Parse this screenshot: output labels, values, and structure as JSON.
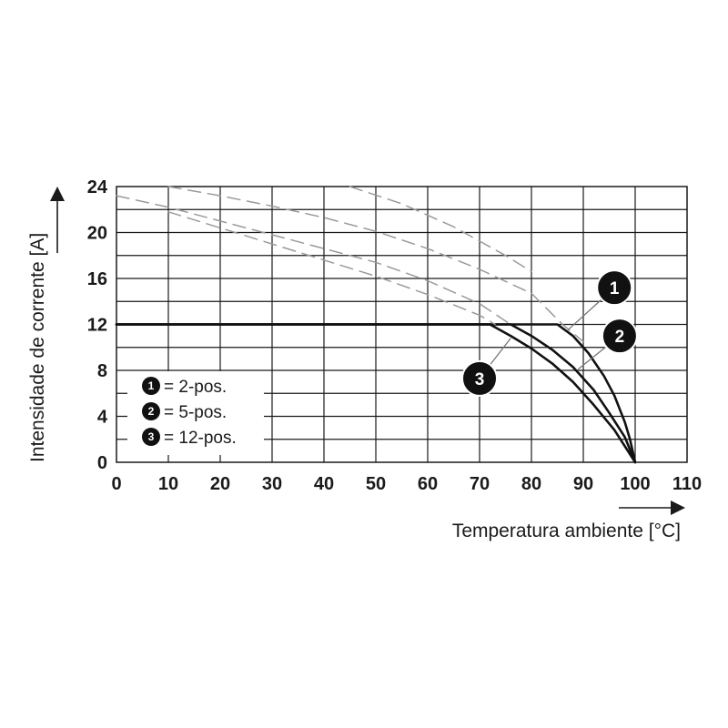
{
  "chart_data": {
    "type": "line",
    "xlabel": "Temperatura ambiente [°C]",
    "ylabel": "Intensidade de corrente [A]",
    "xlim": [
      0,
      110
    ],
    "ylim": [
      0,
      24
    ],
    "x_ticks": [
      "0",
      "10",
      "20",
      "30",
      "40",
      "50",
      "60",
      "70",
      "80",
      "90",
      "100",
      "110"
    ],
    "y_ticks": [
      "0",
      "4",
      "8",
      "12",
      "16",
      "20",
      "24"
    ],
    "grid": true,
    "series": [
      {
        "id": "1",
        "x": [
          0,
          80,
          85,
          88,
          91,
          94,
          96,
          98,
          99,
          100
        ],
        "y": [
          12,
          12,
          12,
          11.0,
          9.5,
          7.5,
          5.8,
          3.5,
          2.0,
          0
        ],
        "style": "solid"
      },
      {
        "id": "2",
        "x": [
          0,
          70,
          76,
          80,
          84,
          88,
          92,
          95,
          98,
          100
        ],
        "y": [
          12,
          12,
          12,
          11.0,
          9.8,
          8.3,
          6.3,
          4.3,
          2.2,
          0
        ],
        "style": "solid"
      },
      {
        "id": "3",
        "x": [
          0,
          70,
          72,
          76,
          80,
          84,
          88,
          92,
          96,
          100
        ],
        "y": [
          12,
          12,
          12,
          11.0,
          9.9,
          8.6,
          7.0,
          5.0,
          2.8,
          0
        ],
        "style": "solid"
      },
      {
        "id": "1-extension",
        "x": [
          10,
          20,
          30,
          40,
          50,
          60,
          70,
          80,
          86,
          90
        ],
        "y": [
          24,
          23.2,
          22.3,
          21.3,
          20.1,
          18.6,
          16.8,
          14.7,
          12.0,
          10.5
        ],
        "style": "dashed"
      },
      {
        "id": "2-extension",
        "x": [
          0,
          10,
          20,
          30,
          40,
          50,
          60,
          70,
          76
        ],
        "y": [
          23.2,
          22.2,
          21.0,
          19.8,
          18.6,
          17.4,
          15.8,
          13.8,
          12.0
        ],
        "style": "dashed"
      },
      {
        "id": "3-extension",
        "x": [
          10,
          20,
          30,
          40,
          50,
          60,
          70,
          73
        ],
        "y": [
          21.8,
          20.4,
          19.0,
          17.6,
          16.2,
          14.6,
          12.8,
          12.0
        ],
        "style": "dashed"
      },
      {
        "id": "1-upper",
        "x": [
          45,
          55,
          65,
          75,
          80
        ],
        "y": [
          24,
          22.5,
          20.5,
          18.0,
          16.6
        ],
        "style": "dashed"
      }
    ],
    "markers": [
      {
        "label": "1",
        "x": 96,
        "y": 15.2
      },
      {
        "label": "2",
        "x": 97,
        "y": 11.0
      },
      {
        "label": "3",
        "x": 70,
        "y": 7.3
      }
    ],
    "legend": [
      {
        "num": "1",
        "text": "= 2-pos."
      },
      {
        "num": "2",
        "text": "= 5-pos."
      },
      {
        "num": "3",
        "text": "= 12-pos."
      }
    ]
  }
}
